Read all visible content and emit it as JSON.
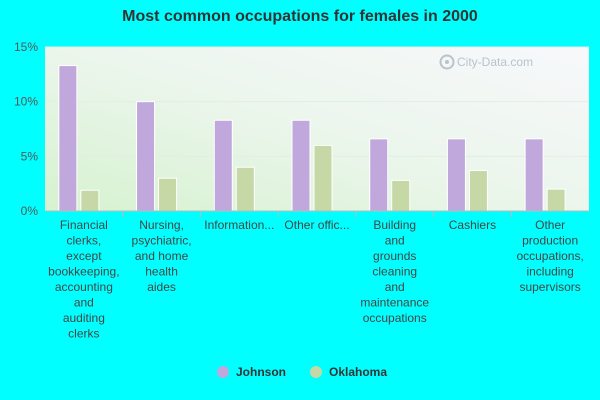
{
  "chart_data": {
    "type": "bar",
    "title": "Most common occupations for females in 2000",
    "categories": [
      "Financial clerks, except bookkeeping, accounting and auditing clerks",
      "Nursing, psychiatric, and home health aides",
      "Information...",
      "Other offic...",
      "Building and grounds cleaning and maintenance occupations",
      "Cashiers",
      "Other production occupations, including supervisors"
    ],
    "category_label_lines": [
      [
        "Financial",
        "clerks,",
        "except",
        "bookkeeping,",
        "accounting",
        "and",
        "auditing",
        "clerks"
      ],
      [
        "Nursing,",
        "psychiatric,",
        "and home",
        "health",
        "aides"
      ],
      [
        "Information..."
      ],
      [
        "Other offic..."
      ],
      [
        "Building",
        "and",
        "grounds",
        "cleaning",
        "and",
        "maintenance",
        "occupations"
      ],
      [
        "Cashiers"
      ],
      [
        "Other",
        "production",
        "occupations,",
        "including",
        "supervisors"
      ]
    ],
    "series": [
      {
        "name": "Johnson",
        "color": "#c0a8dc",
        "values": [
          13.3,
          10.0,
          8.3,
          8.3,
          6.6,
          6.6,
          6.6
        ]
      },
      {
        "name": "Oklahoma",
        "color": "#c5d8a5",
        "values": [
          1.9,
          3.0,
          4.0,
          6.0,
          2.8,
          3.7,
          2.0
        ]
      }
    ],
    "y_ticks": [
      "0%",
      "5%",
      "10%",
      "15%"
    ],
    "y_tick_values": [
      0,
      5,
      10,
      15
    ],
    "ylim": [
      0,
      15
    ],
    "xlabel": "",
    "ylabel": "",
    "grid": true,
    "legend_position": "bottom-center"
  },
  "watermark": "City-Data.com"
}
